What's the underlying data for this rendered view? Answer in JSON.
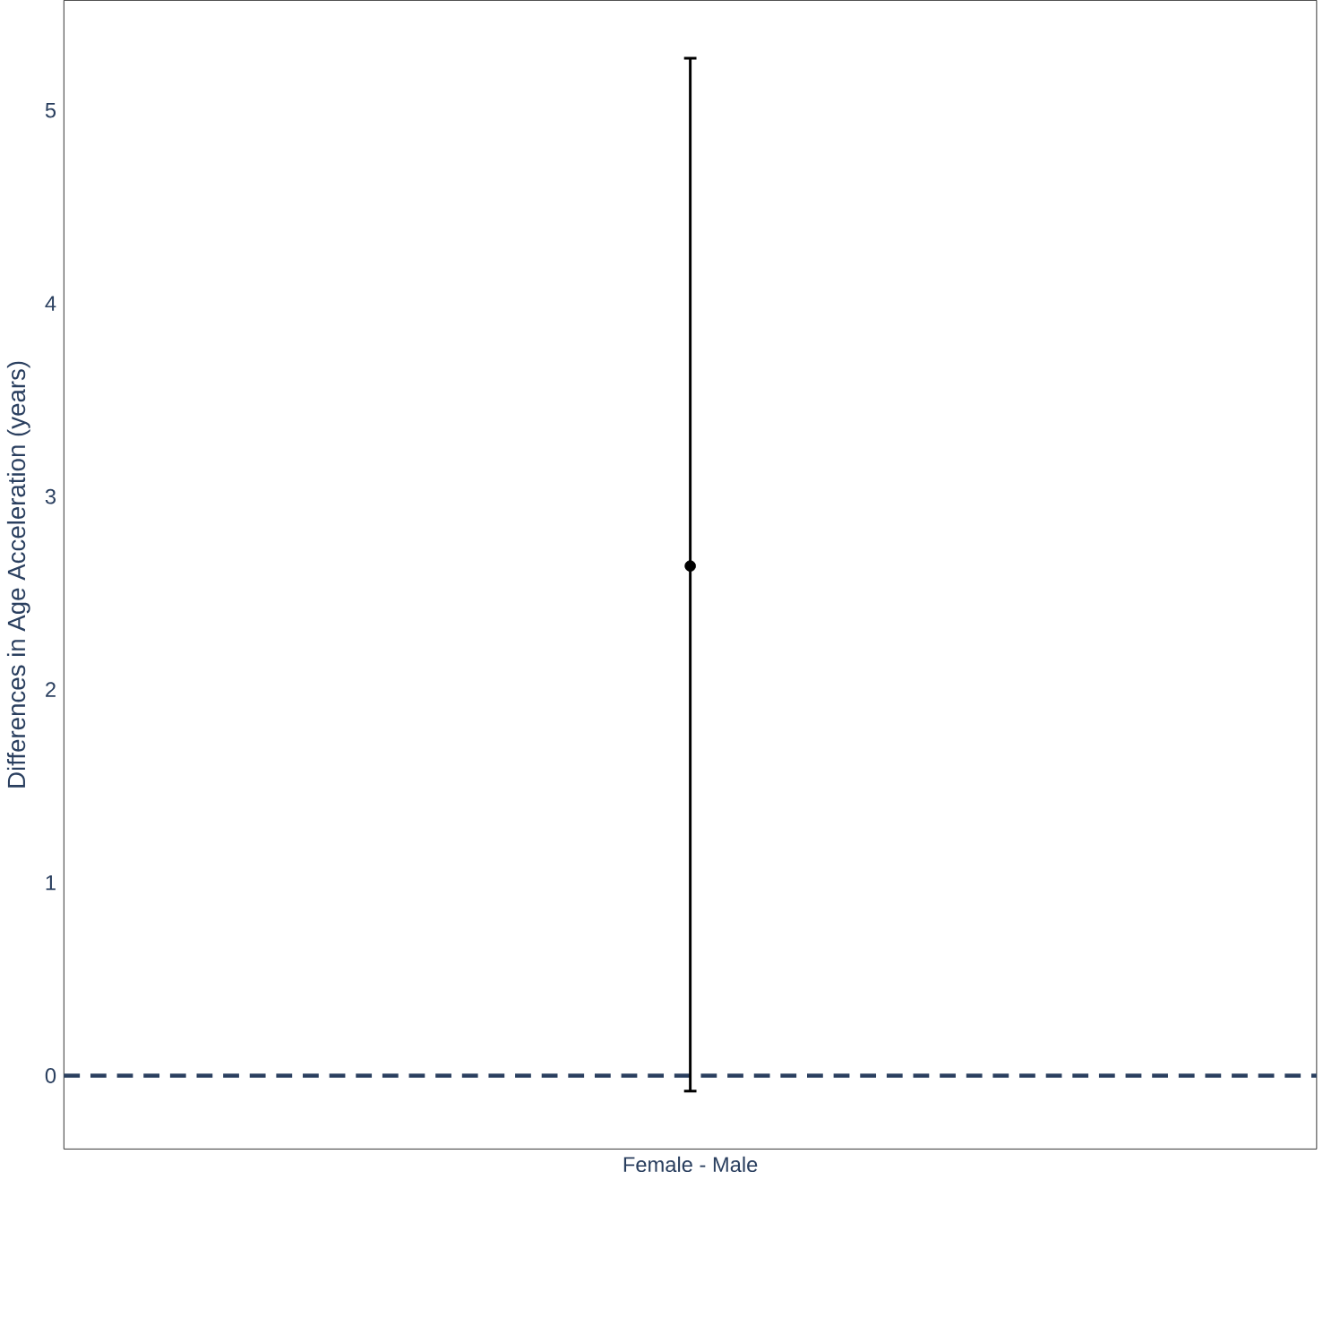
{
  "chart_data": {
    "type": "scatter",
    "ylabel": "Differences in Age Acceleration (years)",
    "categories": [
      "Female - Male"
    ],
    "series": [
      {
        "color": "#000000",
        "values": [
          2.64
        ],
        "errors": [
          [
            -0.08,
            5.27
          ]
        ]
      }
    ],
    "ylim": [
      -0.38,
      5.57
    ],
    "yticks": [
      0,
      1,
      2,
      3,
      4,
      5
    ],
    "grid": false,
    "ref_lines": [
      {
        "axis": "y",
        "value": 0,
        "color": "#2a3f5f",
        "line_style": "dashed"
      }
    ]
  }
}
